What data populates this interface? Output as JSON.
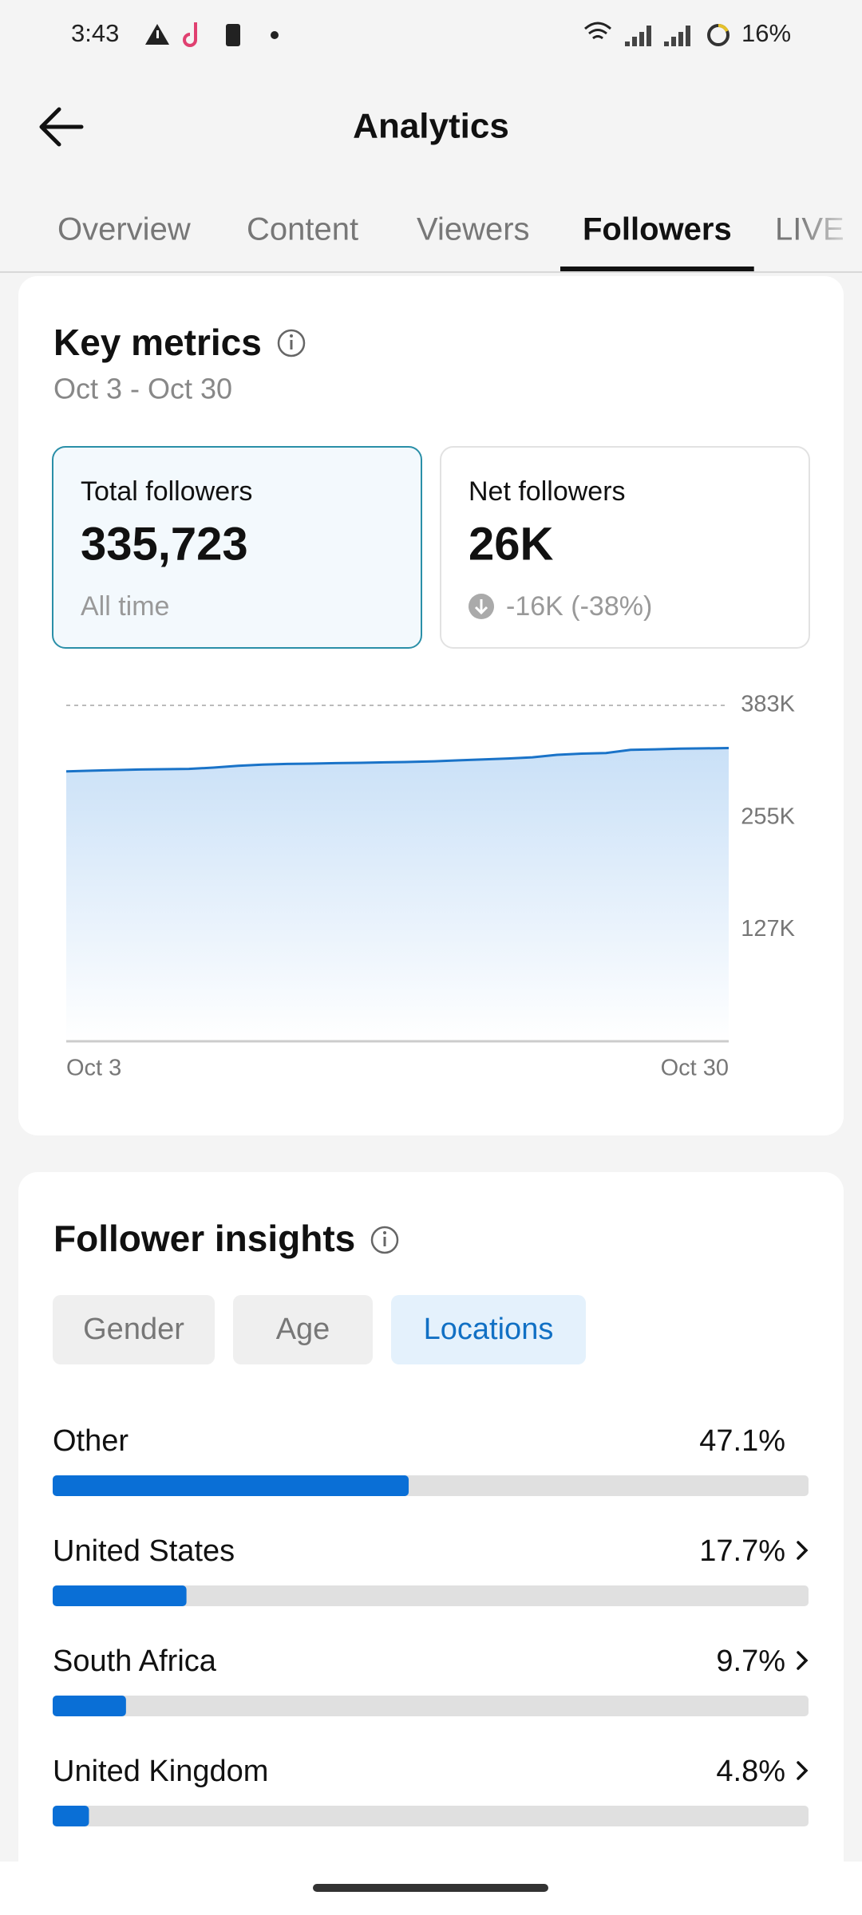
{
  "status_bar": {
    "time": "3:43",
    "battery": "16%"
  },
  "header": {
    "title": "Analytics"
  },
  "tabs": [
    {
      "label": "Overview",
      "active": false
    },
    {
      "label": "Content",
      "active": false
    },
    {
      "label": "Viewers",
      "active": false
    },
    {
      "label": "Followers",
      "active": true
    },
    {
      "label": "LIVE",
      "active": false
    }
  ],
  "key_metrics": {
    "title": "Key metrics",
    "date_range": "Oct 3 - Oct 30",
    "cards": [
      {
        "label": "Total followers",
        "value": "335,723",
        "note": "All time",
        "selected": true
      },
      {
        "label": "Net followers",
        "value": "26K",
        "note": "-16K (-38%)",
        "selected": false
      }
    ]
  },
  "follower_insights": {
    "title": "Follower insights",
    "filters": [
      {
        "label": "Gender",
        "active": false
      },
      {
        "label": "Age",
        "active": false
      },
      {
        "label": "Locations",
        "active": true
      }
    ]
  },
  "chart_data": [
    {
      "type": "line",
      "categories": [
        "Oct 3",
        null,
        null,
        null,
        null,
        null,
        null,
        null,
        null,
        null,
        null,
        null,
        null,
        null,
        null,
        null,
        null,
        null,
        null,
        null,
        null,
        null,
        null,
        null,
        null,
        null,
        null,
        "Oct 30"
      ],
      "values": [
        307800,
        308500,
        309200,
        309900,
        310200,
        310600,
        312000,
        314000,
        315400,
        316200,
        316600,
        317100,
        317500,
        318000,
        318500,
        319200,
        320300,
        321300,
        322400,
        323800,
        326600,
        328000,
        328700,
        332200,
        332900,
        333600,
        334000,
        334300
      ],
      "color": "#1a73c8",
      "ylim": [
        0,
        383000
      ],
      "yticks": [
        {
          "value": 383000,
          "label": "383K"
        },
        {
          "value": 255000,
          "label": "255K"
        },
        {
          "value": 127000,
          "label": "127K"
        }
      ],
      "grid": true
    },
    {
      "type": "hbar",
      "categories": [
        "Other",
        "United States",
        "South Africa",
        "United Kingdom"
      ],
      "values": [
        47.1,
        17.7,
        9.7,
        4.8
      ],
      "value_labels": [
        "47.1%",
        "17.7%",
        "9.7%",
        "4.8%"
      ],
      "xlim": [
        0,
        100
      ],
      "color": "#0a6fd6"
    }
  ]
}
